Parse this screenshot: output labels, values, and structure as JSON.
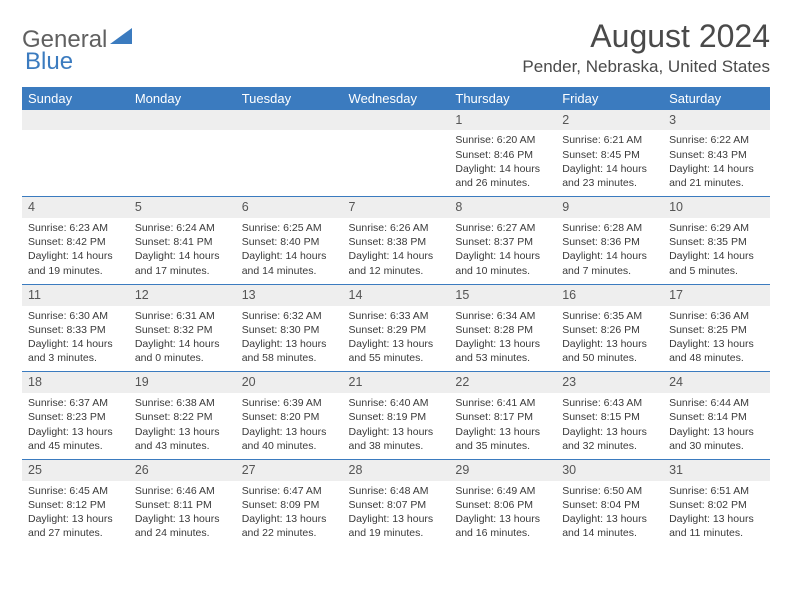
{
  "logo": {
    "general": "General",
    "blue": "Blue"
  },
  "title": "August 2024",
  "location": "Pender, Nebraska, United States",
  "colors": {
    "header_bg": "#3b7bbf",
    "header_text": "#ffffff",
    "daynum_bg": "#eeeeee",
    "rule": "#3b7bbf",
    "text": "#3a3a3a",
    "title_text": "#4a4a4a"
  },
  "weekdays": [
    "Sunday",
    "Monday",
    "Tuesday",
    "Wednesday",
    "Thursday",
    "Friday",
    "Saturday"
  ],
  "weeks": [
    [
      null,
      null,
      null,
      null,
      {
        "n": "1",
        "sunrise": "6:20 AM",
        "sunset": "8:46 PM",
        "dl1": "14 hours",
        "dl2": "and 26 minutes."
      },
      {
        "n": "2",
        "sunrise": "6:21 AM",
        "sunset": "8:45 PM",
        "dl1": "14 hours",
        "dl2": "and 23 minutes."
      },
      {
        "n": "3",
        "sunrise": "6:22 AM",
        "sunset": "8:43 PM",
        "dl1": "14 hours",
        "dl2": "and 21 minutes."
      }
    ],
    [
      {
        "n": "4",
        "sunrise": "6:23 AM",
        "sunset": "8:42 PM",
        "dl1": "14 hours",
        "dl2": "and 19 minutes."
      },
      {
        "n": "5",
        "sunrise": "6:24 AM",
        "sunset": "8:41 PM",
        "dl1": "14 hours",
        "dl2": "and 17 minutes."
      },
      {
        "n": "6",
        "sunrise": "6:25 AM",
        "sunset": "8:40 PM",
        "dl1": "14 hours",
        "dl2": "and 14 minutes."
      },
      {
        "n": "7",
        "sunrise": "6:26 AM",
        "sunset": "8:38 PM",
        "dl1": "14 hours",
        "dl2": "and 12 minutes."
      },
      {
        "n": "8",
        "sunrise": "6:27 AM",
        "sunset": "8:37 PM",
        "dl1": "14 hours",
        "dl2": "and 10 minutes."
      },
      {
        "n": "9",
        "sunrise": "6:28 AM",
        "sunset": "8:36 PM",
        "dl1": "14 hours",
        "dl2": "and 7 minutes."
      },
      {
        "n": "10",
        "sunrise": "6:29 AM",
        "sunset": "8:35 PM",
        "dl1": "14 hours",
        "dl2": "and 5 minutes."
      }
    ],
    [
      {
        "n": "11",
        "sunrise": "6:30 AM",
        "sunset": "8:33 PM",
        "dl1": "14 hours",
        "dl2": "and 3 minutes."
      },
      {
        "n": "12",
        "sunrise": "6:31 AM",
        "sunset": "8:32 PM",
        "dl1": "14 hours",
        "dl2": "and 0 minutes."
      },
      {
        "n": "13",
        "sunrise": "6:32 AM",
        "sunset": "8:30 PM",
        "dl1": "13 hours",
        "dl2": "and 58 minutes."
      },
      {
        "n": "14",
        "sunrise": "6:33 AM",
        "sunset": "8:29 PM",
        "dl1": "13 hours",
        "dl2": "and 55 minutes."
      },
      {
        "n": "15",
        "sunrise": "6:34 AM",
        "sunset": "8:28 PM",
        "dl1": "13 hours",
        "dl2": "and 53 minutes."
      },
      {
        "n": "16",
        "sunrise": "6:35 AM",
        "sunset": "8:26 PM",
        "dl1": "13 hours",
        "dl2": "and 50 minutes."
      },
      {
        "n": "17",
        "sunrise": "6:36 AM",
        "sunset": "8:25 PM",
        "dl1": "13 hours",
        "dl2": "and 48 minutes."
      }
    ],
    [
      {
        "n": "18",
        "sunrise": "6:37 AM",
        "sunset": "8:23 PM",
        "dl1": "13 hours",
        "dl2": "and 45 minutes."
      },
      {
        "n": "19",
        "sunrise": "6:38 AM",
        "sunset": "8:22 PM",
        "dl1": "13 hours",
        "dl2": "and 43 minutes."
      },
      {
        "n": "20",
        "sunrise": "6:39 AM",
        "sunset": "8:20 PM",
        "dl1": "13 hours",
        "dl2": "and 40 minutes."
      },
      {
        "n": "21",
        "sunrise": "6:40 AM",
        "sunset": "8:19 PM",
        "dl1": "13 hours",
        "dl2": "and 38 minutes."
      },
      {
        "n": "22",
        "sunrise": "6:41 AM",
        "sunset": "8:17 PM",
        "dl1": "13 hours",
        "dl2": "and 35 minutes."
      },
      {
        "n": "23",
        "sunrise": "6:43 AM",
        "sunset": "8:15 PM",
        "dl1": "13 hours",
        "dl2": "and 32 minutes."
      },
      {
        "n": "24",
        "sunrise": "6:44 AM",
        "sunset": "8:14 PM",
        "dl1": "13 hours",
        "dl2": "and 30 minutes."
      }
    ],
    [
      {
        "n": "25",
        "sunrise": "6:45 AM",
        "sunset": "8:12 PM",
        "dl1": "13 hours",
        "dl2": "and 27 minutes."
      },
      {
        "n": "26",
        "sunrise": "6:46 AM",
        "sunset": "8:11 PM",
        "dl1": "13 hours",
        "dl2": "and 24 minutes."
      },
      {
        "n": "27",
        "sunrise": "6:47 AM",
        "sunset": "8:09 PM",
        "dl1": "13 hours",
        "dl2": "and 22 minutes."
      },
      {
        "n": "28",
        "sunrise": "6:48 AM",
        "sunset": "8:07 PM",
        "dl1": "13 hours",
        "dl2": "and 19 minutes."
      },
      {
        "n": "29",
        "sunrise": "6:49 AM",
        "sunset": "8:06 PM",
        "dl1": "13 hours",
        "dl2": "and 16 minutes."
      },
      {
        "n": "30",
        "sunrise": "6:50 AM",
        "sunset": "8:04 PM",
        "dl1": "13 hours",
        "dl2": "and 14 minutes."
      },
      {
        "n": "31",
        "sunrise": "6:51 AM",
        "sunset": "8:02 PM",
        "dl1": "13 hours",
        "dl2": "and 11 minutes."
      }
    ]
  ],
  "labels": {
    "sunrise": "Sunrise: ",
    "sunset": "Sunset: ",
    "daylight": "Daylight: "
  }
}
